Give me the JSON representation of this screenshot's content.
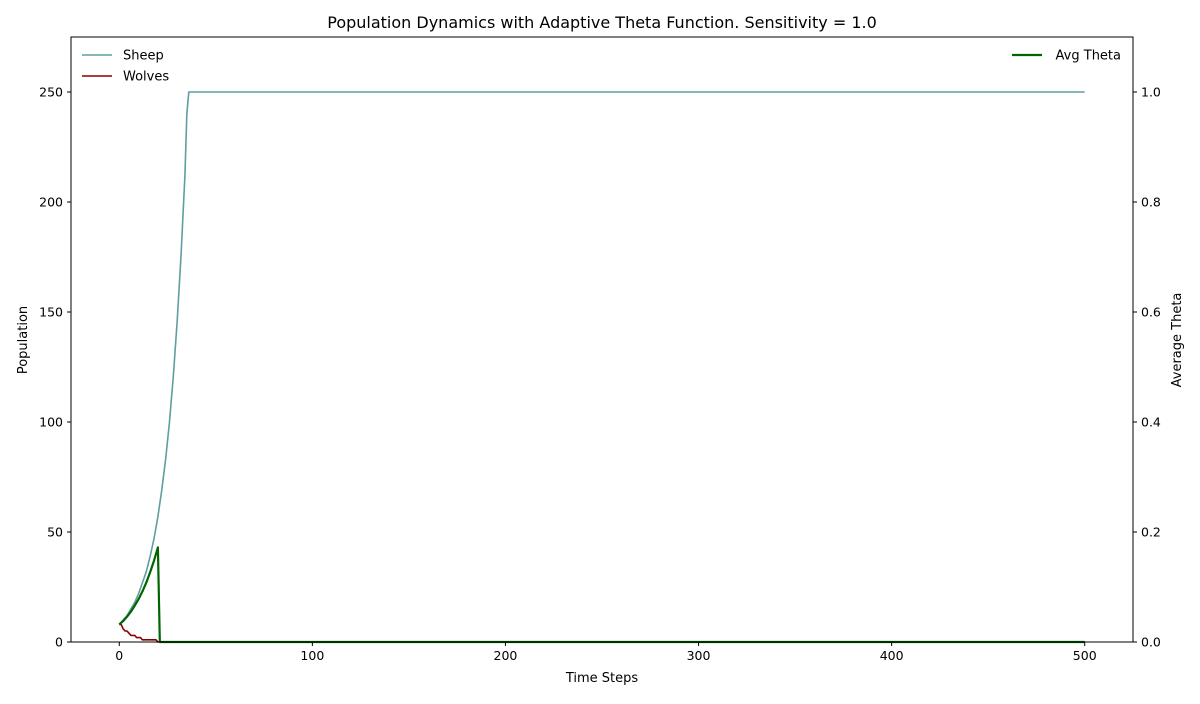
{
  "chart_data": {
    "type": "line",
    "title": "Population Dynamics with Adaptive Theta Function. Sensitivity = 1.0",
    "xlabel": "Time Steps",
    "ylabel": "Population",
    "y2label": "Average Theta",
    "xlim": [
      -25,
      525
    ],
    "ylim": [
      0,
      275
    ],
    "y2lim": [
      0,
      1.1
    ],
    "x_ticks": [
      0,
      100,
      200,
      300,
      400,
      500
    ],
    "y_ticks": [
      0,
      50,
      100,
      150,
      200,
      250
    ],
    "y2_ticks": [
      0.0,
      0.2,
      0.4,
      0.6,
      0.8,
      1.0
    ],
    "y2_tick_labels": [
      "0.0",
      "0.2",
      "0.4",
      "0.6",
      "0.8",
      "1.0"
    ],
    "grid": false,
    "legend_left_placement": "top-left",
    "legend_right_placement": "top-right",
    "series": [
      {
        "name": "Sheep",
        "axis": "left",
        "color": "#5f9ea0",
        "x": [
          0,
          2,
          4,
          6,
          8,
          10,
          12,
          14,
          16,
          18,
          20,
          22,
          24,
          26,
          28,
          30,
          32,
          34,
          35,
          36,
          100,
          200,
          300,
          400,
          500
        ],
        "y": [
          8,
          10,
          12,
          15,
          18,
          22,
          27,
          32,
          39,
          47,
          57,
          69,
          83,
          100,
          121,
          146,
          176,
          212,
          240,
          250,
          250,
          250,
          250,
          250,
          250
        ]
      },
      {
        "name": "Wolves",
        "axis": "left",
        "color": "#8b0000",
        "x": [
          0,
          1,
          2,
          3,
          4,
          5,
          6,
          7,
          8,
          9,
          10,
          11,
          12,
          13,
          19,
          20,
          500
        ],
        "y": [
          8,
          8,
          6,
          5,
          5,
          4,
          3,
          3,
          3,
          2,
          2,
          2,
          1,
          1,
          1,
          0,
          0
        ]
      },
      {
        "name": "Avg Theta",
        "axis": "right",
        "color": "#006400",
        "x": [
          0,
          2,
          4,
          6,
          8,
          10,
          12,
          14,
          16,
          18,
          19,
          20,
          21,
          500
        ],
        "y": [
          0.032,
          0.038,
          0.046,
          0.055,
          0.066,
          0.078,
          0.092,
          0.108,
          0.127,
          0.148,
          0.16,
          0.172,
          0.0,
          0.0
        ]
      }
    ]
  }
}
